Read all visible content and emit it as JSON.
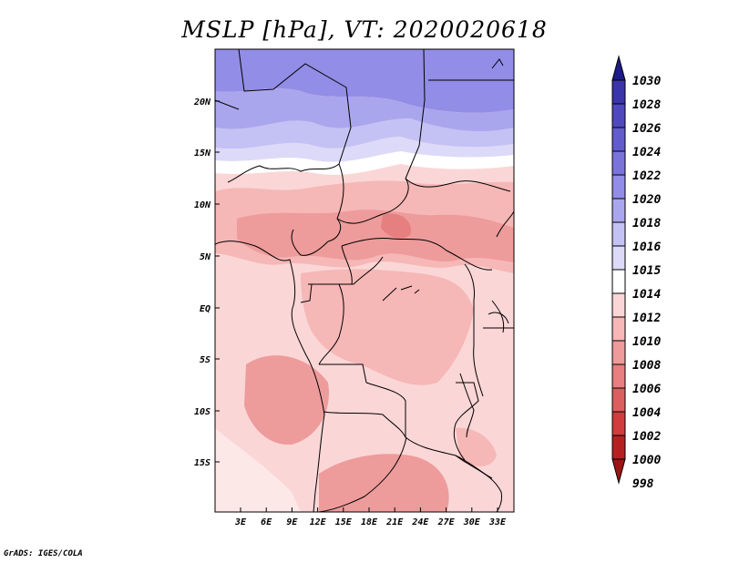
{
  "title": "MSLP [hPa], VT: 2020020618",
  "credit": "GrADS: IGES/COLA",
  "map": {
    "lat_labels": [
      "20N",
      "15N",
      "10N",
      "5N",
      "EQ",
      "5S",
      "10S",
      "15S"
    ],
    "lon_labels": [
      "3E",
      "6E",
      "9E",
      "12E",
      "15E",
      "18E",
      "21E",
      "24E",
      "27E",
      "30E",
      "33E"
    ]
  },
  "colorbar": {
    "levels": [
      "1030",
      "1028",
      "1026",
      "1024",
      "1022",
      "1020",
      "1018",
      "1016",
      "1015",
      "1014",
      "1012",
      "1010",
      "1008",
      "1006",
      "1004",
      "1002",
      "1000",
      "998"
    ],
    "colors": [
      "#1e1b8c",
      "#3a35a8",
      "#4f49bd",
      "#625ccc",
      "#7a74da",
      "#928de6",
      "#aaa6ee",
      "#c4c1f4",
      "#dcdaf8",
      "#ffffff",
      "#fbd6d6",
      "#f6b7b7",
      "#ee9b9b",
      "#e67f7f",
      "#dc5f5f",
      "#cf3d3d",
      "#b52121",
      "#9e1414"
    ]
  }
}
